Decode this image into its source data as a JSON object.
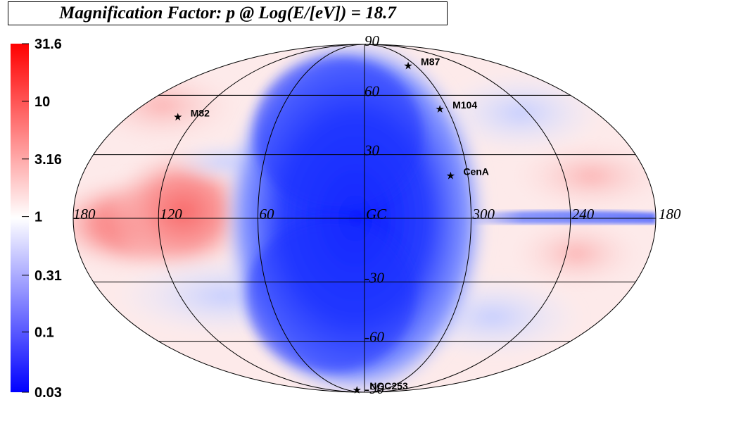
{
  "chart_data": {
    "type": "heatmap",
    "projection": "aitoff-hammer sky map (galactic coordinates)",
    "title": "Magnification Factor: p @ Log(E/[eV]) = 18.7",
    "colorbar": {
      "scale": "log",
      "range": [
        0.03,
        31.6
      ],
      "tick_labels": [
        "31.6",
        "10",
        "3.16",
        "1",
        "0.31",
        "0.1",
        "0.03"
      ],
      "tick_values": [
        31.6,
        10,
        3.16,
        1,
        0.31,
        0.1,
        0.03
      ],
      "colors": {
        "low": "#0000ff",
        "mid": "#ffffff",
        "high": "#ff0000"
      }
    },
    "longitude_labels": [
      {
        "text": "180",
        "lon": 180,
        "side": "left"
      },
      {
        "text": "120",
        "lon": 120
      },
      {
        "text": "60",
        "lon": 60
      },
      {
        "text": "GC",
        "lon": 0
      },
      {
        "text": "300",
        "lon": 300
      },
      {
        "text": "240",
        "lon": 240
      },
      {
        "text": "180",
        "lon": 180,
        "side": "right"
      }
    ],
    "latitude_labels": [
      {
        "text": "90",
        "lat": 90
      },
      {
        "text": "60",
        "lat": 60
      },
      {
        "text": "30",
        "lat": 30
      },
      {
        "text": "-30",
        "lat": -30
      },
      {
        "text": "-60",
        "lat": -60
      },
      {
        "text": "-90",
        "lat": -90
      }
    ],
    "meridians_deg": [
      0,
      60,
      120
    ],
    "parallels_deg": [
      -60,
      -30,
      0,
      30,
      60
    ],
    "sources": [
      {
        "name": "M87",
        "l": 283.8,
        "b": 74.5
      },
      {
        "name": "M104",
        "l": 298.5,
        "b": 51.1
      },
      {
        "name": "M82",
        "l": 141.4,
        "b": 40.6
      },
      {
        "name": "CenA",
        "l": 309.5,
        "b": 19.4
      },
      {
        "name": "NGC253",
        "l": 97.4,
        "b": -88.0
      }
    ],
    "regions": [
      {
        "description": "low magnification band",
        "lon_range": [
          -50,
          50
        ],
        "lat_range": [
          -90,
          90
        ],
        "value": 0.05
      },
      {
        "description": "high magnification",
        "lon_range": [
          100,
          160
        ],
        "lat_range": [
          -30,
          30
        ],
        "value": 3.16
      },
      {
        "description": "galactic plane low strip",
        "lon_range": [
          180,
          300
        ],
        "lat_range": [
          -3,
          3
        ],
        "value": 0.3
      }
    ]
  }
}
